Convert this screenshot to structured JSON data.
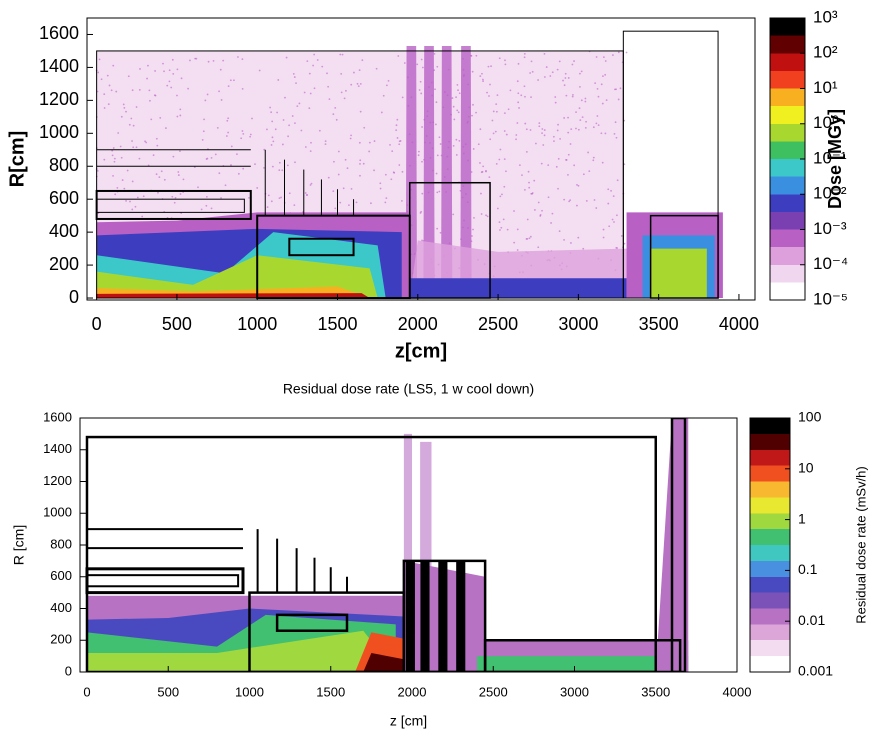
{
  "chart_data": [
    {
      "type": "heatmap",
      "xlabel": "z[cm]",
      "ylabel": "R[cm]",
      "xlim": [
        -60,
        4100
      ],
      "ylim": [
        -12,
        1700
      ],
      "xticks": [
        0,
        500,
        1000,
        1500,
        2000,
        2500,
        3000,
        3500,
        4000
      ],
      "yticks": [
        0,
        200,
        400,
        600,
        800,
        1000,
        1200,
        1400,
        1600
      ],
      "colorbar": {
        "label": "Dose [MGy]",
        "log": true,
        "lim": [
          1e-05,
          1000
        ],
        "ticks": [
          {
            "value": 1000,
            "label": "10³"
          },
          {
            "value": 100,
            "label": "10²"
          },
          {
            "value": 10,
            "label": "10¹"
          },
          {
            "value": 1,
            "label": "10⁰"
          },
          {
            "value": 0.1,
            "label": "10⁻¹"
          },
          {
            "value": 0.01,
            "label": "10⁻²"
          },
          {
            "value": 0.001,
            "label": "10⁻³"
          },
          {
            "value": 0.0001,
            "label": "10⁻⁴"
          },
          {
            "value": 1e-05,
            "label": "10⁻⁵"
          }
        ],
        "colors": [
          "#ffffff",
          "#f1d6ef",
          "#dda0dc",
          "#b860c4",
          "#7a3fb0",
          "#3d3dc0",
          "#3a8fe0",
          "#3cc8c8",
          "#3fc060",
          "#a8d830",
          "#f0f020",
          "#f8b020",
          "#f04020",
          "#c01010",
          "#600000",
          "#000000"
        ]
      }
    },
    {
      "type": "heatmap",
      "title": "Residual dose rate (LS5, 1 w cool down)",
      "xlabel": "z [cm]",
      "ylabel": "R [cm]",
      "xlim": [
        -43,
        4000
      ],
      "ylim": [
        0,
        1600
      ],
      "xticks": [
        0,
        500,
        1000,
        1500,
        2000,
        2500,
        3000,
        3500,
        4000
      ],
      "yticks": [
        0,
        200,
        400,
        600,
        800,
        1000,
        1200,
        1400,
        1600
      ],
      "colorbar": {
        "label": "Residual dose rate (mSv/h)",
        "log": true,
        "lim": [
          0.001,
          100
        ],
        "ticks": [
          100,
          10,
          1,
          0.1,
          0.01,
          0.001
        ],
        "colors": [
          "#ffffff",
          "#f3dcef",
          "#dca6d8",
          "#b872c4",
          "#7a52b8",
          "#4a4ac0",
          "#4a90e0",
          "#40c8c0",
          "#40c070",
          "#a0d840",
          "#e8e830",
          "#f8b830",
          "#f05020",
          "#c01818",
          "#500000",
          "#000000"
        ]
      }
    }
  ]
}
